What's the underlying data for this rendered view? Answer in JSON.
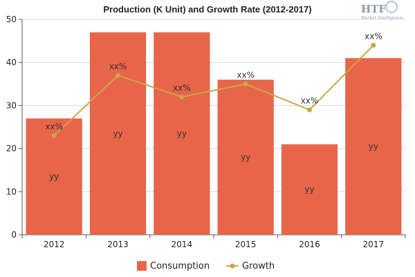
{
  "chart_data": {
    "type": "bar",
    "title": "Production (K Unit) and Growth Rate (2012-2017)",
    "categories": [
      "2012",
      "2013",
      "2014",
      "2015",
      "2016",
      "2017"
    ],
    "ylim": [
      0,
      50
    ],
    "yticks": [
      0,
      10,
      20,
      30,
      40,
      50
    ],
    "grid": true,
    "legend_position": "bottom",
    "series": [
      {
        "name": "Consumption",
        "type": "bar",
        "color": "#e8654a",
        "values": [
          27,
          47,
          47,
          36,
          21,
          41
        ],
        "labels": [
          "yy",
          "yy",
          "yy",
          "yy",
          "yy",
          "yy"
        ]
      },
      {
        "name": "Growth",
        "type": "line",
        "color": "#c9a646",
        "values": [
          23,
          37,
          32,
          35,
          29,
          44
        ],
        "labels": [
          "xx%",
          "xx%",
          "xx%",
          "xx%",
          "xx%",
          "xx%"
        ]
      }
    ]
  },
  "logo": {
    "text": "HTF",
    "subtext": "Market Intelligence"
  }
}
